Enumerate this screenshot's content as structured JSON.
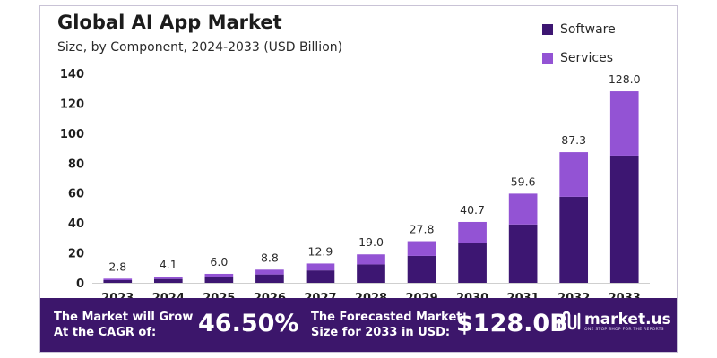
{
  "chart_data": {
    "type": "bar",
    "stacked": true,
    "title": "Global AI App Market",
    "subtitle": "Size, by Component, 2024-2033 (USD Billion)",
    "categories": [
      "2023",
      "2024",
      "2025",
      "2026",
      "2027",
      "2028",
      "2029",
      "2030",
      "2031",
      "2032",
      "2033"
    ],
    "series": [
      {
        "name": "Software",
        "color": "#3d1672",
        "values": [
          1.8,
          2.6,
          3.8,
          5.6,
          8.3,
          12.3,
          18.0,
          26.5,
          39.0,
          57.5,
          85.0
        ]
      },
      {
        "name": "Services",
        "color": "#9353d4",
        "values": [
          1.0,
          1.5,
          2.2,
          3.2,
          4.6,
          6.7,
          9.8,
          14.2,
          20.6,
          29.8,
          43.0
        ]
      }
    ],
    "totals": [
      2.8,
      4.1,
      6.0,
      8.8,
      12.9,
      19.0,
      27.8,
      40.7,
      59.6,
      87.3,
      128.0
    ],
    "total_labels": [
      "2.8",
      "4.1",
      "6.0",
      "8.8",
      "12.9",
      "19.0",
      "27.8",
      "40.7",
      "59.6",
      "87.3",
      "128.0"
    ],
    "ylim": [
      0,
      140
    ],
    "yticks": [
      0,
      20,
      40,
      60,
      80,
      100,
      120,
      140
    ],
    "grid": false,
    "legend_position": "top-right",
    "xlabel": "",
    "ylabel": ""
  },
  "footer": {
    "cagr_text_line1": "The Market will Grow",
    "cagr_text_line2": "At the CAGR of:",
    "cagr_value": "46.50%",
    "forecast_text_line1": "The Forecasted Market",
    "forecast_text_line2": "Size for 2033 in USD:",
    "forecast_value": "$128.0B",
    "brand_name": "market.us",
    "brand_tagline": "ONE STOP SHOP FOR THE REPORTS",
    "background_color": "#3c166b"
  }
}
